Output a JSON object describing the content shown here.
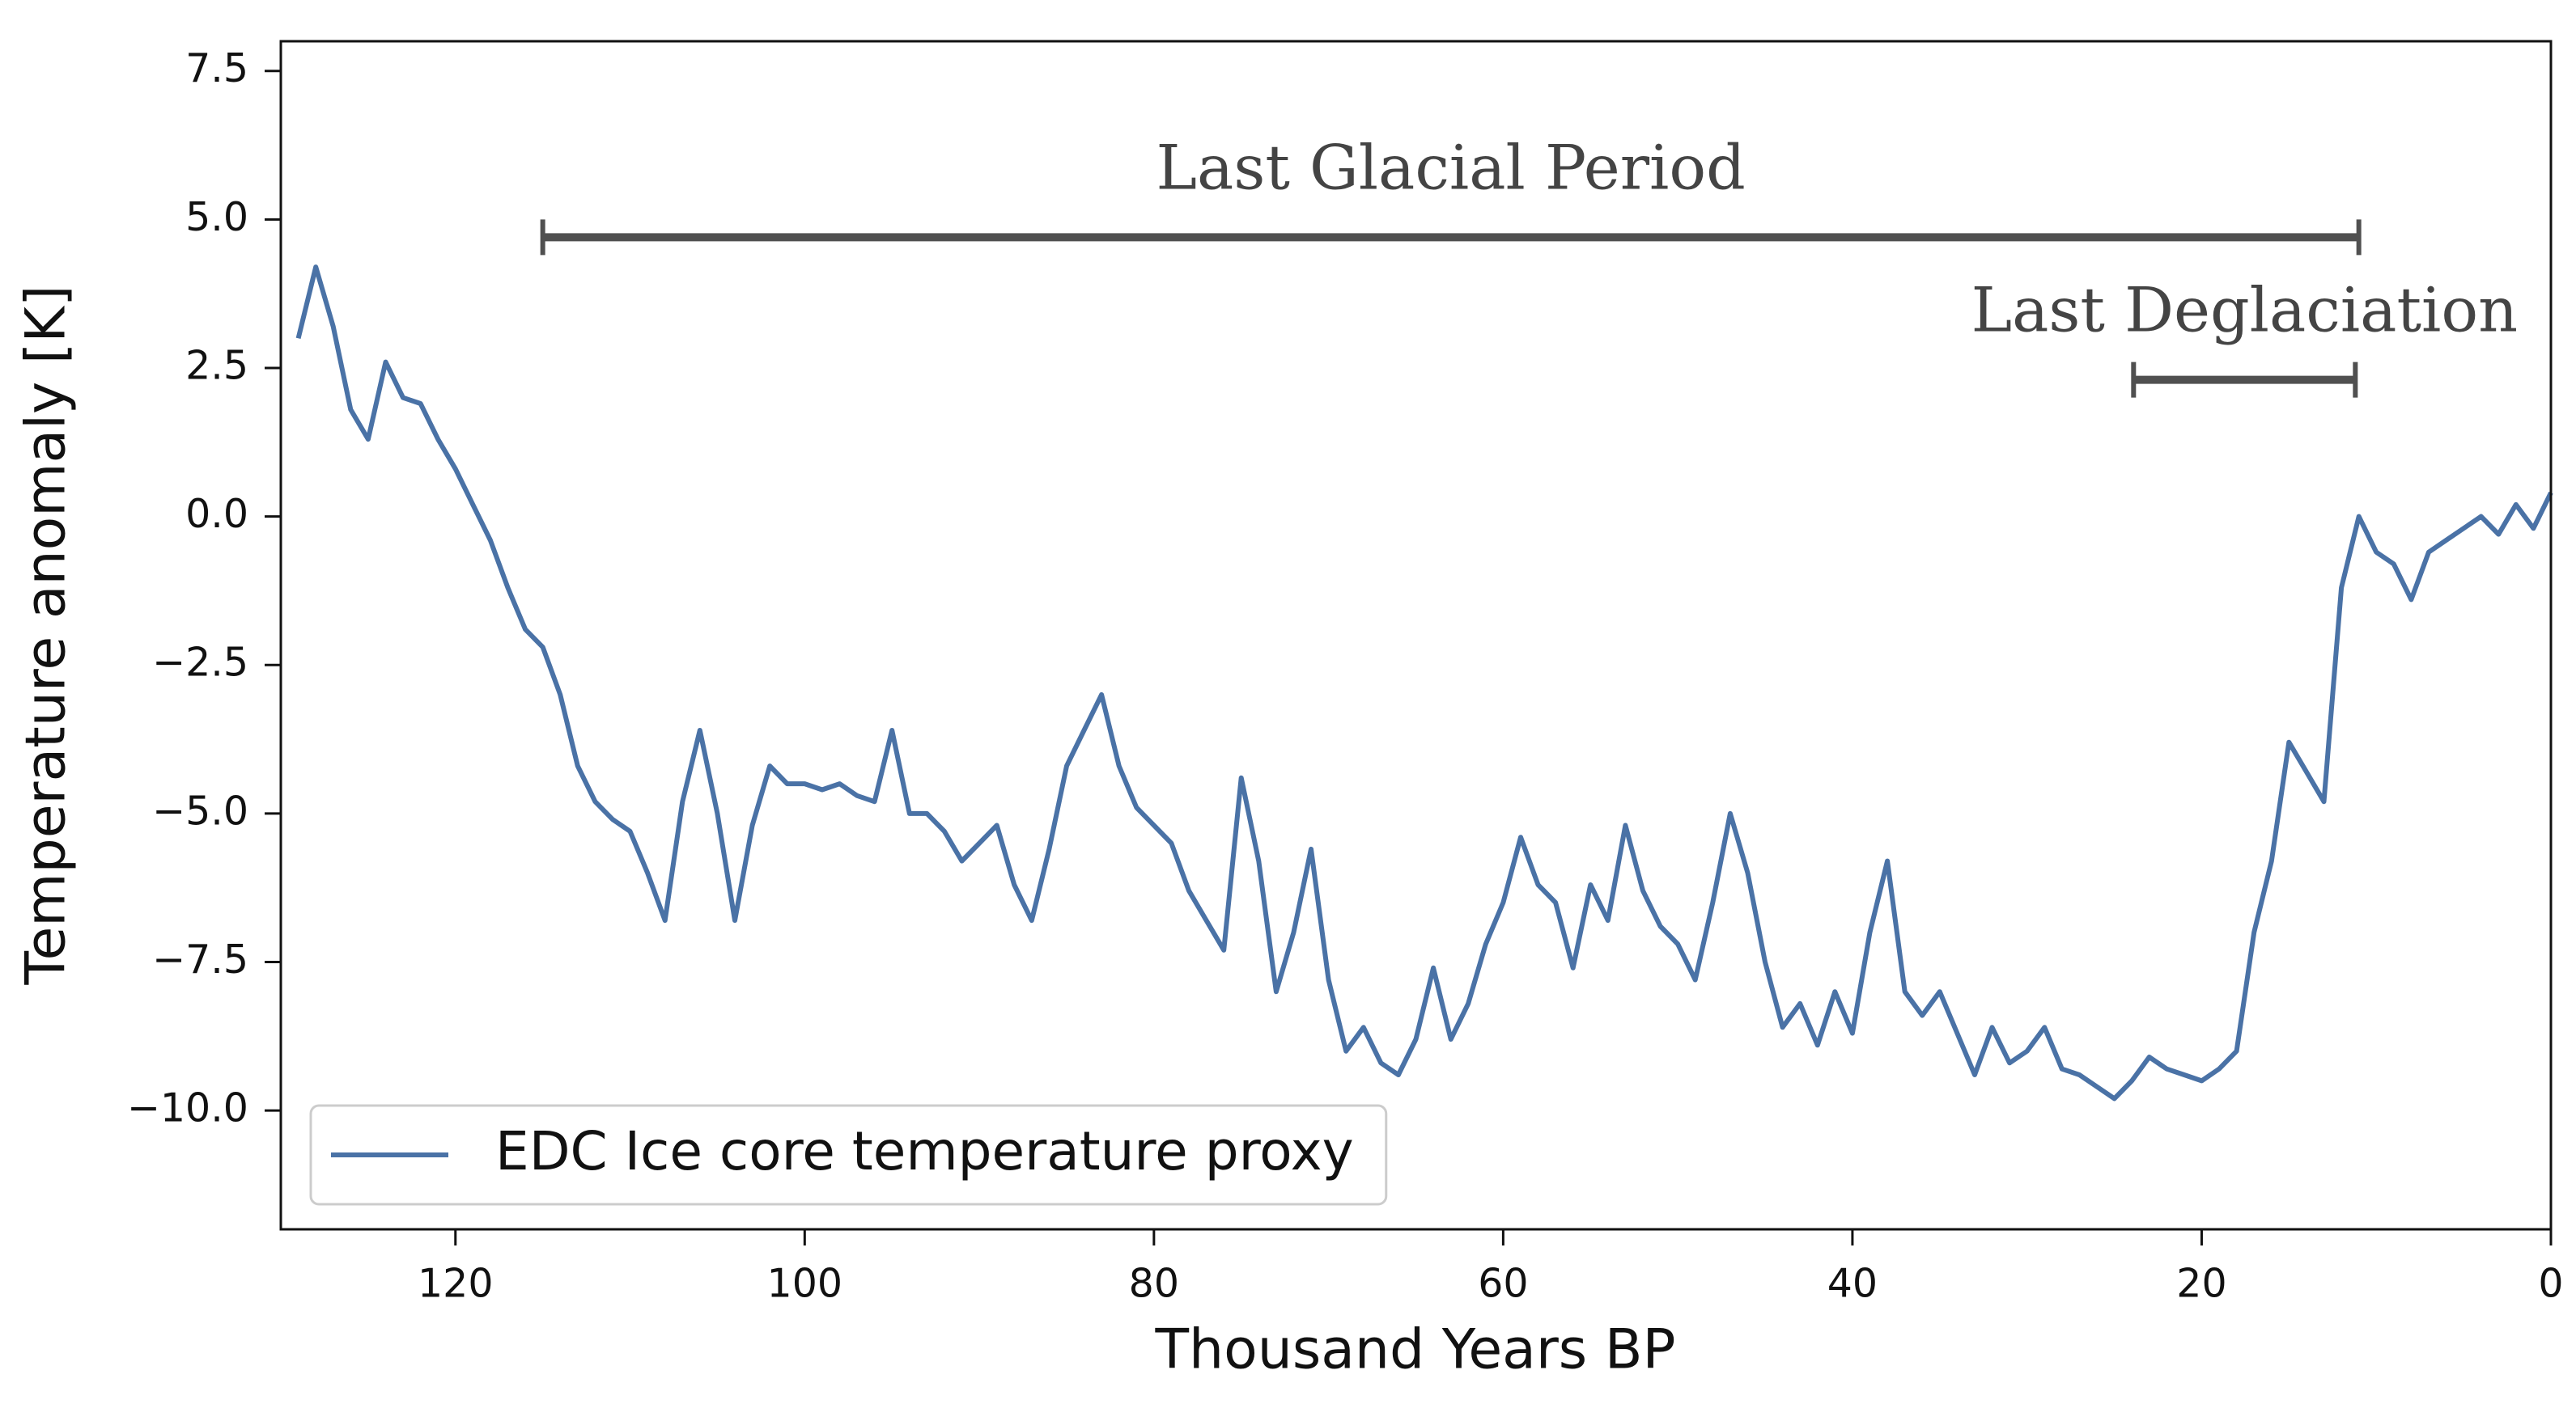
{
  "chart_data": {
    "type": "line",
    "xlabel": "Thousand Years BP",
    "ylabel": "Temperature anomaly [K]",
    "x": [
      129,
      128,
      127,
      126,
      125,
      124,
      123,
      122,
      121,
      120,
      119,
      118,
      117,
      116,
      115,
      114,
      113,
      112,
      111,
      110,
      109,
      108,
      107,
      106,
      105,
      104,
      103,
      102,
      101,
      100,
      99,
      98,
      97,
      96,
      95,
      94,
      93,
      92,
      91,
      90,
      89,
      88,
      87,
      86,
      85,
      84,
      83,
      82,
      81,
      80,
      79,
      78,
      77,
      76,
      75,
      74,
      73,
      72,
      71,
      70,
      69,
      68,
      67,
      66,
      65,
      64,
      63,
      62,
      61,
      60,
      59,
      58,
      57,
      56,
      55,
      54,
      53,
      52,
      51,
      50,
      49,
      48,
      47,
      46,
      45,
      44,
      43,
      42,
      41,
      40,
      39,
      38,
      37,
      36,
      35,
      34,
      33,
      32,
      31,
      30,
      29,
      28,
      27,
      26,
      25,
      24,
      23,
      22,
      21,
      20,
      19,
      18,
      17,
      16,
      15,
      14,
      13,
      12,
      11,
      10,
      9,
      8,
      7,
      6,
      5,
      4,
      3,
      2,
      1,
      0
    ],
    "series": [
      {
        "name": "EDC Ice core temperature proxy",
        "color": "#4a72a6",
        "values": [
          3.0,
          4.2,
          3.2,
          1.8,
          1.3,
          2.6,
          2.0,
          1.9,
          1.3,
          0.8,
          0.2,
          -0.4,
          -1.2,
          -1.9,
          -2.2,
          -3.0,
          -4.2,
          -4.8,
          -5.1,
          -5.3,
          -6.0,
          -6.8,
          -4.8,
          -3.6,
          -5.0,
          -6.8,
          -5.2,
          -4.2,
          -4.5,
          -4.5,
          -4.6,
          -4.5,
          -4.7,
          -4.8,
          -3.6,
          -5.0,
          -5.0,
          -5.3,
          -5.8,
          -5.5,
          -5.2,
          -6.2,
          -6.8,
          -5.6,
          -4.2,
          -3.6,
          -3.0,
          -4.2,
          -4.9,
          -5.2,
          -5.5,
          -6.3,
          -6.8,
          -7.3,
          -4.4,
          -5.8,
          -8.0,
          -7.0,
          -5.6,
          -7.8,
          -9.0,
          -8.6,
          -9.2,
          -9.4,
          -8.8,
          -7.6,
          -8.8,
          -8.2,
          -7.2,
          -6.5,
          -5.4,
          -6.2,
          -6.5,
          -7.6,
          -6.2,
          -6.8,
          -5.2,
          -6.3,
          -6.9,
          -7.2,
          -7.8,
          -6.5,
          -5.0,
          -6.0,
          -7.5,
          -8.6,
          -8.2,
          -8.9,
          -8.0,
          -8.7,
          -7.0,
          -5.8,
          -8.0,
          -8.4,
          -8.0,
          -8.7,
          -9.4,
          -8.6,
          -9.2,
          -9.0,
          -8.6,
          -9.3,
          -9.4,
          -9.6,
          -9.8,
          -9.5,
          -9.1,
          -9.3,
          -9.4,
          -9.5,
          -9.3,
          -9.0,
          -7.0,
          -5.8,
          -3.8,
          -4.3,
          -4.8,
          -1.2,
          0.0,
          -0.6,
          -0.8,
          -1.4,
          -0.6,
          -0.4,
          -0.2,
          0.0,
          -0.3,
          0.2,
          -0.2,
          0.4
        ]
      }
    ],
    "xlim": [
      130,
      0
    ],
    "ylim": [
      -12,
      8
    ],
    "xticks": [
      120,
      100,
      80,
      60,
      40,
      20,
      0
    ],
    "yticks": [
      7.5,
      {
        "value": 5,
        "label": "5.0"
      },
      2.5,
      {
        "value": 0,
        "label": "0.0"
      },
      {
        "value": -2.5,
        "label": "−2.5"
      },
      {
        "value": -5,
        "label": "−5.0"
      },
      {
        "value": -7.5,
        "label": "−7.5"
      },
      {
        "value": -10,
        "label": "−10.0"
      }
    ],
    "legend": "lower left",
    "annotations": [
      {
        "text": "Last Glacial Period",
        "xrange": [
          115,
          11
        ],
        "y": 4.7
      },
      {
        "text": "Last Deglaciation",
        "xrange": [
          23.9,
          11.2
        ],
        "y": 2.3
      }
    ]
  }
}
